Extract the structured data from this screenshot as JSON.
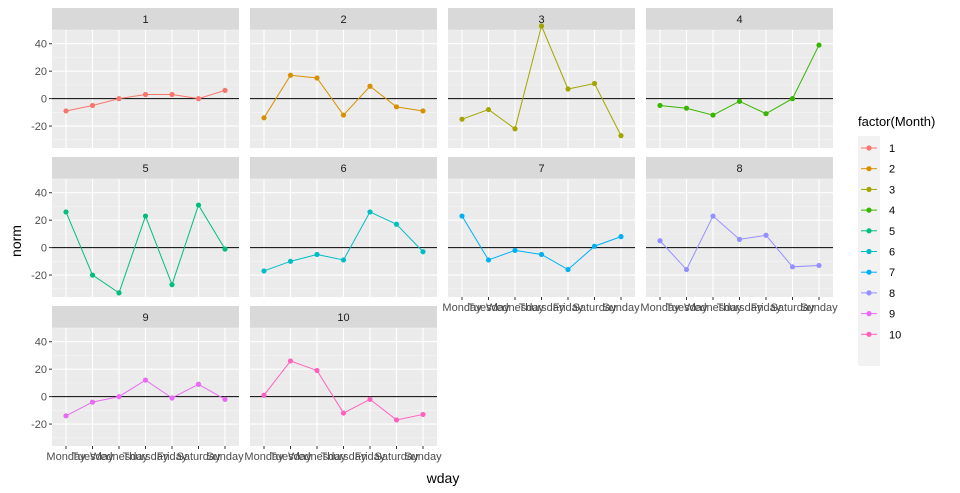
{
  "chart_data": {
    "type": "line",
    "facet_by": "Month",
    "xlabel": "wday",
    "ylabel": "norm",
    "categories": [
      "Monday",
      "Tuesday",
      "Wednesday",
      "Thursday",
      "Friday",
      "Saturday",
      "Sunday"
    ],
    "y_ticks": [
      -20,
      0,
      20,
      40
    ],
    "ylim": [
      -36,
      50
    ],
    "hline": 0,
    "grid": true,
    "legend": {
      "title": "factor(Month)",
      "position": "right",
      "entries": [
        "1",
        "2",
        "3",
        "4",
        "5",
        "6",
        "7",
        "8",
        "9",
        "10"
      ]
    },
    "colors": [
      "#F8766D",
      "#D89000",
      "#A3A500",
      "#39B600",
      "#00BF7D",
      "#00BFC4",
      "#00B0F6",
      "#9590FF",
      "#E76BF3",
      "#FF62BC"
    ],
    "series": [
      {
        "name": "1",
        "values": [
          -9,
          -5,
          0,
          3,
          3,
          0,
          6
        ]
      },
      {
        "name": "2",
        "values": [
          -14,
          17,
          15,
          -12,
          9,
          -6,
          -9
        ]
      },
      {
        "name": "3",
        "values": [
          -15,
          -8,
          -22,
          53,
          7,
          11,
          -27
        ]
      },
      {
        "name": "4",
        "values": [
          -5,
          -7,
          -12,
          -2,
          -11,
          0,
          39
        ]
      },
      {
        "name": "5",
        "values": [
          26,
          -20,
          -33,
          23,
          -27,
          31,
          -1
        ]
      },
      {
        "name": "6",
        "values": [
          -17,
          -10,
          -5,
          -9,
          26,
          17,
          -3
        ]
      },
      {
        "name": "7",
        "values": [
          23,
          -9,
          -2,
          -5,
          -16,
          1,
          8
        ]
      },
      {
        "name": "8",
        "values": [
          5,
          -16,
          23,
          6,
          9,
          -14,
          -13
        ]
      },
      {
        "name": "9",
        "values": [
          -14,
          -4,
          0,
          12,
          -1,
          9,
          -2
        ]
      },
      {
        "name": "10",
        "values": [
          1,
          26,
          19,
          -12,
          -2,
          -17,
          -13
        ]
      }
    ]
  }
}
